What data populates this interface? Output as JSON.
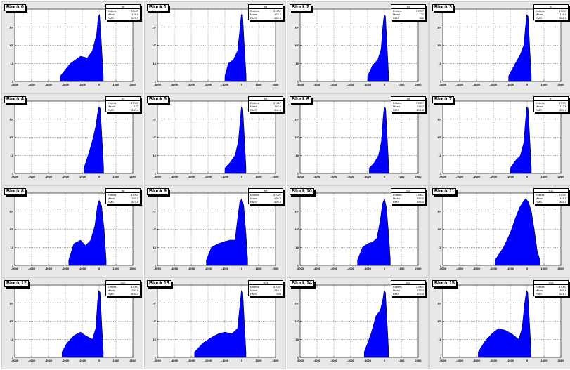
{
  "colors": {
    "fill": "#0000ff",
    "line": "#000000",
    "panel_bg": "#e8e8e8",
    "frame_bg": "#ffffff"
  },
  "stats_labels": {
    "entries": "Entries",
    "mean": "Mean",
    "rms": "RMS"
  },
  "chart_data": {
    "type": "histogram-grid",
    "layout": {
      "rows": 4,
      "cols": 4
    },
    "x_ticks": [
      -5000,
      -4000,
      -3000,
      -2000,
      -1000,
      0,
      1000,
      2000
    ],
    "xlim": [
      -5000,
      2000
    ],
    "y_scale": "log",
    "y_ticks": [
      "1",
      "10",
      "10²",
      "10³",
      "10⁴"
    ],
    "ylim_log10": [
      0,
      4
    ],
    "panels": [
      {
        "title": "Block 0",
        "hist": "h0",
        "entries": "37097",
        "mean": "-176.5",
        "rms": "527.7",
        "profile": [
          {
            "x": -2300,
            "y": 0.3
          },
          {
            "x": -1700,
            "y": 1.0
          },
          {
            "x": -1100,
            "y": 1.4
          },
          {
            "x": -700,
            "y": 1.3
          },
          {
            "x": -400,
            "y": 1.7
          },
          {
            "x": -150,
            "y": 2.6
          },
          {
            "x": -50,
            "y": 3.6
          },
          {
            "x": 30,
            "y": 3.7
          },
          {
            "x": 120,
            "y": 2.4
          },
          {
            "x": 250,
            "y": 0.3
          }
        ]
      },
      {
        "title": "Block 1",
        "hist": "h1",
        "entries": "37097",
        "mean": "-125.2",
        "rms": "315.3",
        "profile": [
          {
            "x": -1000,
            "y": 0.3
          },
          {
            "x": -800,
            "y": 1.0
          },
          {
            "x": -500,
            "y": 1.2
          },
          {
            "x": -250,
            "y": 1.7
          },
          {
            "x": -100,
            "y": 3.0
          },
          {
            "x": -30,
            "y": 3.7
          },
          {
            "x": 50,
            "y": 3.7
          },
          {
            "x": 150,
            "y": 2.0
          },
          {
            "x": 260,
            "y": 0.3
          }
        ]
      },
      {
        "title": "Block 2",
        "hist": "h2",
        "entries": "37097",
        "mean": "-127",
        "rms": "326",
        "profile": [
          {
            "x": -1000,
            "y": 0.3
          },
          {
            "x": -700,
            "y": 0.9
          },
          {
            "x": -400,
            "y": 1.2
          },
          {
            "x": -200,
            "y": 1.8
          },
          {
            "x": -100,
            "y": 3.0
          },
          {
            "x": -20,
            "y": 3.7
          },
          {
            "x": 60,
            "y": 3.6
          },
          {
            "x": 160,
            "y": 1.9
          },
          {
            "x": 250,
            "y": 0.3
          }
        ]
      },
      {
        "title": "Block 3",
        "hist": "h3",
        "entries": "37097",
        "mean": "-116.3",
        "rms": "301.1",
        "profile": [
          {
            "x": -1100,
            "y": 0.3
          },
          {
            "x": -700,
            "y": 1.0
          },
          {
            "x": -400,
            "y": 1.5
          },
          {
            "x": -200,
            "y": 2.0
          },
          {
            "x": -90,
            "y": 3.1
          },
          {
            "x": -20,
            "y": 3.7
          },
          {
            "x": 60,
            "y": 3.6
          },
          {
            "x": 160,
            "y": 1.8
          },
          {
            "x": 250,
            "y": 0.3
          }
        ]
      },
      {
        "title": "Block 4",
        "hist": "h4",
        "entries": "37097",
        "mean": "-127",
        "rms": "330.4",
        "profile": [
          {
            "x": -900,
            "y": 0.3
          },
          {
            "x": -650,
            "y": 1.0
          },
          {
            "x": -400,
            "y": 1.8
          },
          {
            "x": -200,
            "y": 2.6
          },
          {
            "x": -80,
            "y": 3.4
          },
          {
            "x": -10,
            "y": 3.7
          },
          {
            "x": 70,
            "y": 3.6
          },
          {
            "x": 170,
            "y": 2.0
          },
          {
            "x": 270,
            "y": 0.3
          }
        ]
      },
      {
        "title": "Block 5",
        "hist": "h5",
        "entries": "37097",
        "mean": "-116.6",
        "rms": "304.5",
        "profile": [
          {
            "x": -1000,
            "y": 0.3
          },
          {
            "x": -700,
            "y": 0.6
          },
          {
            "x": -400,
            "y": 1.0
          },
          {
            "x": -200,
            "y": 1.8
          },
          {
            "x": -90,
            "y": 3.0
          },
          {
            "x": -20,
            "y": 3.7
          },
          {
            "x": 60,
            "y": 3.6
          },
          {
            "x": 160,
            "y": 1.9
          },
          {
            "x": 250,
            "y": 0.3
          }
        ]
      },
      {
        "title": "Block 6",
        "hist": "h6",
        "entries": "37097",
        "mean": "-116.7",
        "rms": "301.8",
        "profile": [
          {
            "x": -900,
            "y": 0.3
          },
          {
            "x": -600,
            "y": 0.6
          },
          {
            "x": -350,
            "y": 1.0
          },
          {
            "x": -180,
            "y": 1.8
          },
          {
            "x": -80,
            "y": 3.1
          },
          {
            "x": -10,
            "y": 3.7
          },
          {
            "x": 70,
            "y": 3.6
          },
          {
            "x": 170,
            "y": 1.9
          },
          {
            "x": 260,
            "y": 0.3
          }
        ]
      },
      {
        "title": "Block 7",
        "hist": "h7",
        "entries": "37097",
        "mean": "-112.6",
        "rms": "302.1",
        "profile": [
          {
            "x": -1000,
            "y": 0.3
          },
          {
            "x": -700,
            "y": 0.7
          },
          {
            "x": -400,
            "y": 1.0
          },
          {
            "x": -200,
            "y": 1.7
          },
          {
            "x": -90,
            "y": 3.0
          },
          {
            "x": -20,
            "y": 3.7
          },
          {
            "x": 60,
            "y": 3.6
          },
          {
            "x": 160,
            "y": 1.9
          },
          {
            "x": 250,
            "y": 0.3
          }
        ]
      },
      {
        "title": "Block 8",
        "hist": "h8",
        "entries": "37097",
        "mean": "-185.2",
        "rms": "427.6",
        "profile": [
          {
            "x": -1800,
            "y": 0.3
          },
          {
            "x": -1500,
            "y": 1.2
          },
          {
            "x": -1100,
            "y": 1.4
          },
          {
            "x": -800,
            "y": 1.1
          },
          {
            "x": -500,
            "y": 1.4
          },
          {
            "x": -250,
            "y": 2.2
          },
          {
            "x": -100,
            "y": 3.3
          },
          {
            "x": 0,
            "y": 3.6
          },
          {
            "x": 150,
            "y": 3.3
          },
          {
            "x": 300,
            "y": 2.0
          },
          {
            "x": 420,
            "y": 0.3
          }
        ]
      },
      {
        "title": "Block 9",
        "hist": "h9",
        "entries": "37097",
        "mean": "-180.3",
        "rms": "426.5",
        "profile": [
          {
            "x": -2100,
            "y": 0.3
          },
          {
            "x": -1800,
            "y": 1.0
          },
          {
            "x": -1400,
            "y": 1.2
          },
          {
            "x": -1100,
            "y": 1.3
          },
          {
            "x": -700,
            "y": 1.4
          },
          {
            "x": -400,
            "y": 1.4
          },
          {
            "x": -250,
            "y": 2.6
          },
          {
            "x": -120,
            "y": 3.5
          },
          {
            "x": 0,
            "y": 3.7
          },
          {
            "x": 120,
            "y": 3.3
          },
          {
            "x": 260,
            "y": 1.6
          },
          {
            "x": 350,
            "y": 0.3
          }
        ]
      },
      {
        "title": "Block 10",
        "hist": "h10",
        "entries": "37097",
        "mean": "-155.2",
        "rms": "355.3",
        "profile": [
          {
            "x": -1600,
            "y": 0.3
          },
          {
            "x": -1300,
            "y": 1.0
          },
          {
            "x": -1000,
            "y": 1.2
          },
          {
            "x": -700,
            "y": 1.3
          },
          {
            "x": -450,
            "y": 1.5
          },
          {
            "x": -250,
            "y": 2.5
          },
          {
            "x": -120,
            "y": 3.4
          },
          {
            "x": 0,
            "y": 3.7
          },
          {
            "x": 120,
            "y": 3.2
          },
          {
            "x": 260,
            "y": 1.6
          },
          {
            "x": 350,
            "y": 0.3
          }
        ]
      },
      {
        "title": "Block 11",
        "hist": "h11",
        "entries": "37097",
        "mean": "-148.1",
        "rms": "361.1",
        "profile": [
          {
            "x": -1900,
            "y": 0.3
          },
          {
            "x": -1400,
            "y": 1.0
          },
          {
            "x": -1000,
            "y": 1.8
          },
          {
            "x": -700,
            "y": 2.6
          },
          {
            "x": -450,
            "y": 3.2
          },
          {
            "x": -250,
            "y": 3.5
          },
          {
            "x": -80,
            "y": 3.7
          },
          {
            "x": 80,
            "y": 3.5
          },
          {
            "x": 250,
            "y": 3.0
          },
          {
            "x": 420,
            "y": 2.0
          },
          {
            "x": 600,
            "y": 0.8
          },
          {
            "x": 760,
            "y": 0.3
          }
        ]
      },
      {
        "title": "Block 12",
        "hist": "h12",
        "entries": "37097",
        "mean": "-200.1",
        "rms": "539.4",
        "profile": [
          {
            "x": -2200,
            "y": 0.3
          },
          {
            "x": -1900,
            "y": 0.8
          },
          {
            "x": -1500,
            "y": 1.2
          },
          {
            "x": -1100,
            "y": 1.4
          },
          {
            "x": -800,
            "y": 1.2
          },
          {
            "x": -400,
            "y": 1.0
          },
          {
            "x": -200,
            "y": 1.6
          },
          {
            "x": -90,
            "y": 3.1
          },
          {
            "x": -20,
            "y": 3.7
          },
          {
            "x": 60,
            "y": 3.6
          },
          {
            "x": 160,
            "y": 1.8
          },
          {
            "x": 250,
            "y": 0.3
          }
        ]
      },
      {
        "title": "Block 13",
        "hist": "h13",
        "entries": "37097",
        "mean": "-233.6",
        "rms": "548",
        "profile": [
          {
            "x": -2800,
            "y": 0.3
          },
          {
            "x": -2300,
            "y": 0.8
          },
          {
            "x": -1800,
            "y": 1.1
          },
          {
            "x": -1400,
            "y": 1.3
          },
          {
            "x": -1000,
            "y": 1.4
          },
          {
            "x": -600,
            "y": 1.3
          },
          {
            "x": -250,
            "y": 1.6
          },
          {
            "x": -100,
            "y": 3.0
          },
          {
            "x": -20,
            "y": 3.7
          },
          {
            "x": 60,
            "y": 3.6
          },
          {
            "x": 160,
            "y": 1.8
          },
          {
            "x": 250,
            "y": 0.3
          }
        ]
      },
      {
        "title": "Block 14",
        "hist": "h14",
        "entries": "37097",
        "mean": "-123.4",
        "rms": "303.4",
        "profile": [
          {
            "x": -1200,
            "y": 0.3
          },
          {
            "x": -800,
            "y": 1.3
          },
          {
            "x": -500,
            "y": 2.3
          },
          {
            "x": -250,
            "y": 2.6
          },
          {
            "x": -100,
            "y": 3.2
          },
          {
            "x": -20,
            "y": 3.7
          },
          {
            "x": 60,
            "y": 3.6
          },
          {
            "x": 160,
            "y": 1.9
          },
          {
            "x": 250,
            "y": 0.3
          }
        ]
      },
      {
        "title": "Block 15",
        "hist": "h15",
        "entries": "37097",
        "mean": "-389.6",
        "rms": "521.3",
        "profile": [
          {
            "x": -2900,
            "y": 0.3
          },
          {
            "x": -2500,
            "y": 0.9
          },
          {
            "x": -2100,
            "y": 1.3
          },
          {
            "x": -1700,
            "y": 1.6
          },
          {
            "x": -1300,
            "y": 1.5
          },
          {
            "x": -900,
            "y": 1.3
          },
          {
            "x": -500,
            "y": 1.0
          },
          {
            "x": -300,
            "y": 1.6
          },
          {
            "x": -150,
            "y": 3.0
          },
          {
            "x": -40,
            "y": 3.7
          },
          {
            "x": 40,
            "y": 3.6
          },
          {
            "x": 150,
            "y": 1.8
          },
          {
            "x": 240,
            "y": 0.3
          }
        ]
      }
    ]
  }
}
